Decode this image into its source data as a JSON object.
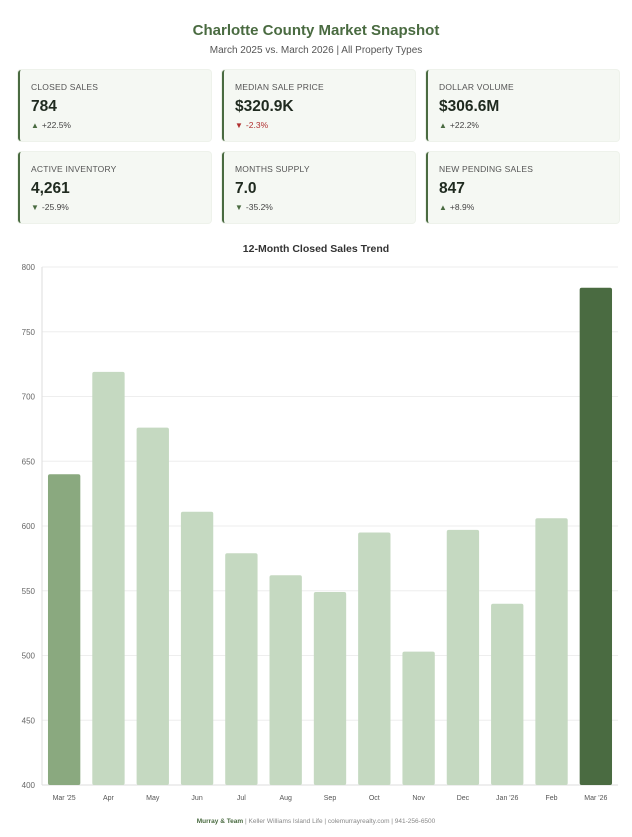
{
  "header": {
    "title": "Charlotte County Market Snapshot",
    "subtitle": "March 2025 vs. March 2026 | All Property Types"
  },
  "cards": [
    {
      "label": "CLOSED SALES",
      "value": "784",
      "change": "+22.5%",
      "direction": "up"
    },
    {
      "label": "MEDIAN SALE PRICE",
      "value": "$320.9K",
      "change": "-2.3%",
      "direction": "down-negative"
    },
    {
      "label": "DOLLAR VOLUME",
      "value": "$306.6M",
      "change": "+22.2%",
      "direction": "up"
    },
    {
      "label": "ACTIVE INVENTORY",
      "value": "4,261",
      "change": "-25.9%",
      "direction": "down"
    },
    {
      "label": "MONTHS SUPPLY",
      "value": "7.0",
      "change": "-35.2%",
      "direction": "down"
    },
    {
      "label": "NEW PENDING SALES",
      "value": "847",
      "change": "+8.9%",
      "direction": "up"
    }
  ],
  "colors": {
    "accent": "#4a6b41",
    "bar_light": "#c5d9c1",
    "bar_mid": "#8aa97f",
    "bar_dark": "#4a6b41",
    "negative": "#b03030"
  },
  "chart_data": {
    "type": "bar",
    "title": "12-Month Closed Sales Trend",
    "categories": [
      "Mar '25",
      "Apr",
      "May",
      "Jun",
      "Jul",
      "Aug",
      "Sep",
      "Oct",
      "Nov",
      "Dec",
      "Jan '26",
      "Feb",
      "Mar '26"
    ],
    "values": [
      640,
      719,
      676,
      611,
      579,
      562,
      549,
      595,
      503,
      597,
      540,
      606,
      784
    ],
    "highlight": {
      "first": "Mar '25",
      "last": "Mar '26"
    },
    "ylim": [
      400,
      800
    ],
    "yticks": [
      400,
      450,
      500,
      550,
      600,
      650,
      700,
      750,
      800
    ],
    "xlabel": "",
    "ylabel": "",
    "grid": true
  },
  "footer": {
    "brand": "Murray & Team",
    "details": " | Keller Williams Island Life | colemurrayrealty.com | 941-256-6500"
  }
}
